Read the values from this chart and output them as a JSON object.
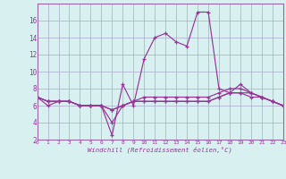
{
  "xlabel": "Windchill (Refroidissement éolien,°C)",
  "x": [
    0,
    1,
    2,
    3,
    4,
    5,
    6,
    7,
    8,
    9,
    10,
    11,
    12,
    13,
    14,
    15,
    16,
    17,
    18,
    19,
    20,
    21,
    22,
    23
  ],
  "line1": [
    7,
    6,
    6.5,
    6.5,
    6,
    6,
    6,
    2.5,
    8.5,
    6,
    11.5,
    14,
    14.5,
    13.5,
    13,
    17,
    17,
    8,
    7.5,
    8.5,
    7.5,
    7,
    6.5,
    6
  ],
  "line2": [
    7,
    6.5,
    6.5,
    6.5,
    6,
    6,
    6,
    4,
    6,
    6.5,
    7,
    7,
    7,
    7,
    7,
    7,
    7,
    7.5,
    8,
    8,
    7.5,
    7,
    6.5,
    6
  ],
  "line3": [
    7,
    6.5,
    6.5,
    6.5,
    6,
    6,
    6,
    5.5,
    6,
    6.5,
    6.5,
    6.5,
    6.5,
    6.5,
    6.5,
    6.5,
    6.5,
    7,
    7.5,
    7.5,
    7.5,
    7,
    6.5,
    6
  ],
  "line4": [
    7,
    6.5,
    6.5,
    6.5,
    6,
    6,
    6,
    5.5,
    6,
    6.5,
    6.5,
    6.5,
    6.5,
    6.5,
    6.5,
    6.5,
    6.5,
    7,
    7.5,
    7.5,
    7,
    7,
    6.5,
    6
  ],
  "ylim": [
    2,
    18
  ],
  "xlim": [
    0,
    23
  ],
  "yticks": [
    2,
    4,
    6,
    8,
    10,
    12,
    14,
    16
  ],
  "bg_color": "#d8f0f0",
  "line_color": "#993399",
  "grid_color": "#aaaacc",
  "spine_color": "#9966aa"
}
